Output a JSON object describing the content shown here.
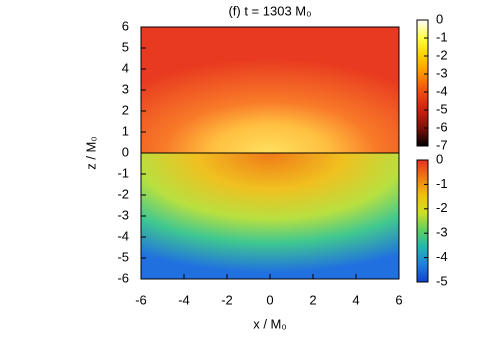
{
  "chart_data": {
    "type": "heatmap",
    "title": "(f) t = 1303 M₀",
    "xlabel": "x / M₀",
    "ylabel": "z / M₀",
    "xlim": [
      -6,
      6
    ],
    "xticks": [
      -6,
      -4,
      -2,
      0,
      2,
      4,
      6
    ],
    "ylim": [
      -6,
      6
    ],
    "yticks": [
      -6,
      -5,
      -4,
      -3,
      -2,
      -1,
      0,
      1,
      2,
      3,
      4,
      5,
      6
    ],
    "colorbars": [
      {
        "lim": [
          -7,
          0
        ],
        "ticks": [
          0,
          -1,
          -2,
          -3,
          -4,
          -5,
          -6,
          -7
        ],
        "colors": [
          "#ffffff",
          "#ffff40",
          "#ffd000",
          "#ff9000",
          "#f04a10",
          "#d02010",
          "#801008",
          "#000000"
        ]
      },
      {
        "lim": [
          -5,
          0
        ],
        "ticks": [
          0,
          -1,
          -2,
          -3,
          -4,
          -5
        ],
        "colors": [
          "#e83020",
          "#f07a10",
          "#f0c010",
          "#d0e020",
          "#60d060",
          "#20b8b0",
          "#2080e0",
          "#1040d0"
        ]
      }
    ]
  }
}
